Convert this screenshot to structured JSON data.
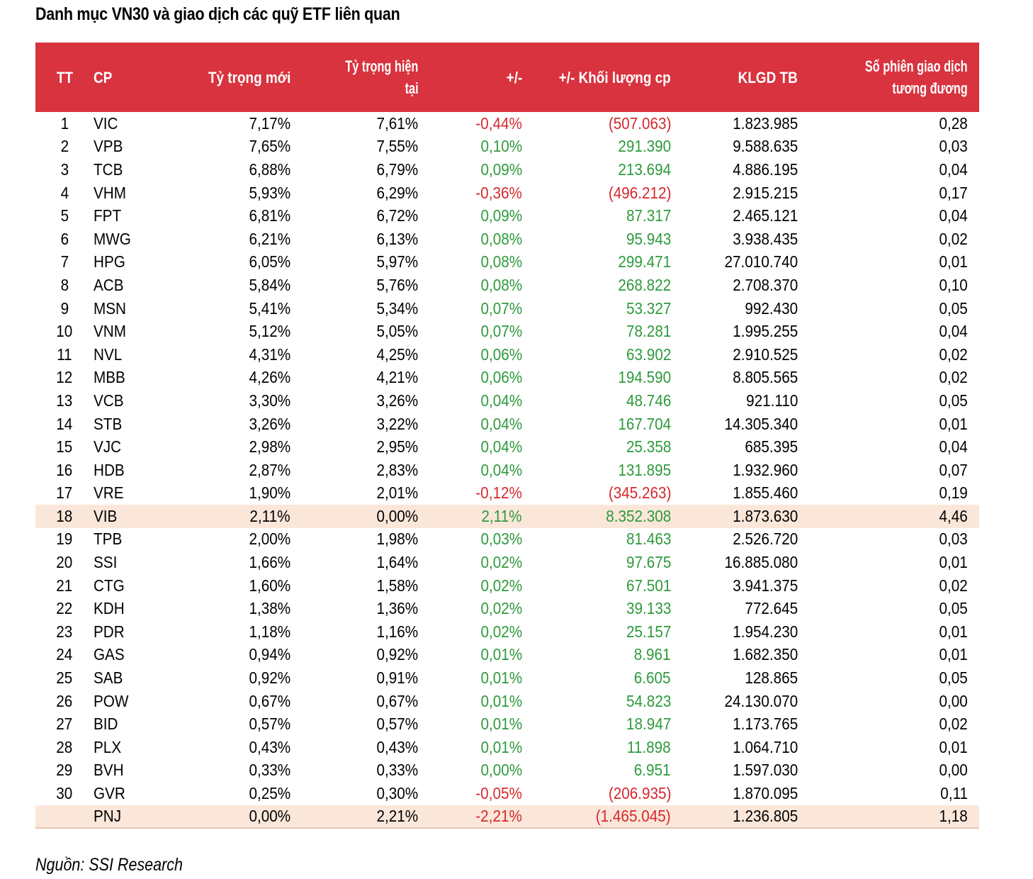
{
  "title": "Danh mục VN30 và giao dịch các quỹ ETF liên quan",
  "source": "Nguồn: SSI Research",
  "colors": {
    "header_bg": "#d8333f",
    "positive": "#2e9a3c",
    "negative": "#d6282e",
    "highlight_row": "#fbe7da"
  },
  "table": {
    "headers": {
      "tt": "TT",
      "cp": "CP",
      "new_weight": "Tỷ trọng mới",
      "cur_weight_1": "Tỷ trọng hiện",
      "cur_weight_2": "tại",
      "diff": "+/-",
      "vol_diff": "+/- Khối lượng cp",
      "avg_vol": "KLGD TB",
      "sessions_1": "Số phiên giao dịch",
      "sessions_2": "tương đương"
    },
    "rows": [
      {
        "tt": "1",
        "cp": "VIC",
        "new": "7,17%",
        "cur": "7,61%",
        "diff": "-0,44%",
        "vol": "(507.063)",
        "avg": "1.823.985",
        "sess": "0,28",
        "sign": "neg"
      },
      {
        "tt": "2",
        "cp": "VPB",
        "new": "7,65%",
        "cur": "7,55%",
        "diff": "0,10%",
        "vol": "291.390",
        "avg": "9.588.635",
        "sess": "0,03",
        "sign": "pos"
      },
      {
        "tt": "3",
        "cp": "TCB",
        "new": "6,88%",
        "cur": "6,79%",
        "diff": "0,09%",
        "vol": "213.694",
        "avg": "4.886.195",
        "sess": "0,04",
        "sign": "pos"
      },
      {
        "tt": "4",
        "cp": "VHM",
        "new": "5,93%",
        "cur": "6,29%",
        "diff": "-0,36%",
        "vol": "(496.212)",
        "avg": "2.915.215",
        "sess": "0,17",
        "sign": "neg"
      },
      {
        "tt": "5",
        "cp": "FPT",
        "new": "6,81%",
        "cur": "6,72%",
        "diff": "0,09%",
        "vol": "87.317",
        "avg": "2.465.121",
        "sess": "0,04",
        "sign": "pos"
      },
      {
        "tt": "6",
        "cp": "MWG",
        "new": "6,21%",
        "cur": "6,13%",
        "diff": "0,08%",
        "vol": "95.943",
        "avg": "3.938.435",
        "sess": "0,02",
        "sign": "pos"
      },
      {
        "tt": "7",
        "cp": "HPG",
        "new": "6,05%",
        "cur": "5,97%",
        "diff": "0,08%",
        "vol": "299.471",
        "avg": "27.010.740",
        "sess": "0,01",
        "sign": "pos"
      },
      {
        "tt": "8",
        "cp": "ACB",
        "new": "5,84%",
        "cur": "5,76%",
        "diff": "0,08%",
        "vol": "268.822",
        "avg": "2.708.370",
        "sess": "0,10",
        "sign": "pos"
      },
      {
        "tt": "9",
        "cp": "MSN",
        "new": "5,41%",
        "cur": "5,34%",
        "diff": "0,07%",
        "vol": "53.327",
        "avg": "992.430",
        "sess": "0,05",
        "sign": "pos"
      },
      {
        "tt": "10",
        "cp": "VNM",
        "new": "5,12%",
        "cur": "5,05%",
        "diff": "0,07%",
        "vol": "78.281",
        "avg": "1.995.255",
        "sess": "0,04",
        "sign": "pos"
      },
      {
        "tt": "11",
        "cp": "NVL",
        "new": "4,31%",
        "cur": "4,25%",
        "diff": "0,06%",
        "vol": "63.902",
        "avg": "2.910.525",
        "sess": "0,02",
        "sign": "pos"
      },
      {
        "tt": "12",
        "cp": "MBB",
        "new": "4,26%",
        "cur": "4,21%",
        "diff": "0,06%",
        "vol": "194.590",
        "avg": "8.805.565",
        "sess": "0,02",
        "sign": "pos"
      },
      {
        "tt": "13",
        "cp": "VCB",
        "new": "3,30%",
        "cur": "3,26%",
        "diff": "0,04%",
        "vol": "48.746",
        "avg": "921.110",
        "sess": "0,05",
        "sign": "pos"
      },
      {
        "tt": "14",
        "cp": "STB",
        "new": "3,26%",
        "cur": "3,22%",
        "diff": "0,04%",
        "vol": "167.704",
        "avg": "14.305.340",
        "sess": "0,01",
        "sign": "pos"
      },
      {
        "tt": "15",
        "cp": "VJC",
        "new": "2,98%",
        "cur": "2,95%",
        "diff": "0,04%",
        "vol": "25.358",
        "avg": "685.395",
        "sess": "0,04",
        "sign": "pos"
      },
      {
        "tt": "16",
        "cp": "HDB",
        "new": "2,87%",
        "cur": "2,83%",
        "diff": "0,04%",
        "vol": "131.895",
        "avg": "1.932.960",
        "sess": "0,07",
        "sign": "pos"
      },
      {
        "tt": "17",
        "cp": "VRE",
        "new": "1,90%",
        "cur": "2,01%",
        "diff": "-0,12%",
        "vol": "(345.263)",
        "avg": "1.855.460",
        "sess": "0,19",
        "sign": "neg"
      },
      {
        "tt": "18",
        "cp": "VIB",
        "new": "2,11%",
        "cur": "0,00%",
        "diff": "2,11%",
        "vol": "8.352.308",
        "avg": "1.873.630",
        "sess": "4,46",
        "sign": "pos",
        "highlight": true
      },
      {
        "tt": "19",
        "cp": "TPB",
        "new": "2,00%",
        "cur": "1,98%",
        "diff": "0,03%",
        "vol": "81.463",
        "avg": "2.526.720",
        "sess": "0,03",
        "sign": "pos"
      },
      {
        "tt": "20",
        "cp": "SSI",
        "new": "1,66%",
        "cur": "1,64%",
        "diff": "0,02%",
        "vol": "97.675",
        "avg": "16.885.080",
        "sess": "0,01",
        "sign": "pos"
      },
      {
        "tt": "21",
        "cp": "CTG",
        "new": "1,60%",
        "cur": "1,58%",
        "diff": "0,02%",
        "vol": "67.501",
        "avg": "3.941.375",
        "sess": "0,02",
        "sign": "pos"
      },
      {
        "tt": "22",
        "cp": "KDH",
        "new": "1,38%",
        "cur": "1,36%",
        "diff": "0,02%",
        "vol": "39.133",
        "avg": "772.645",
        "sess": "0,05",
        "sign": "pos"
      },
      {
        "tt": "23",
        "cp": "PDR",
        "new": "1,18%",
        "cur": "1,16%",
        "diff": "0,02%",
        "vol": "25.157",
        "avg": "1.954.230",
        "sess": "0,01",
        "sign": "pos"
      },
      {
        "tt": "24",
        "cp": "GAS",
        "new": "0,94%",
        "cur": "0,92%",
        "diff": "0,01%",
        "vol": "8.961",
        "avg": "1.682.350",
        "sess": "0,01",
        "sign": "pos"
      },
      {
        "tt": "25",
        "cp": "SAB",
        "new": "0,92%",
        "cur": "0,91%",
        "diff": "0,01%",
        "vol": "6.605",
        "avg": "128.865",
        "sess": "0,05",
        "sign": "pos"
      },
      {
        "tt": "26",
        "cp": "POW",
        "new": "0,67%",
        "cur": "0,67%",
        "diff": "0,01%",
        "vol": "54.823",
        "avg": "24.130.070",
        "sess": "0,00",
        "sign": "pos"
      },
      {
        "tt": "27",
        "cp": "BID",
        "new": "0,57%",
        "cur": "0,57%",
        "diff": "0,01%",
        "vol": "18.947",
        "avg": "1.173.765",
        "sess": "0,02",
        "sign": "pos"
      },
      {
        "tt": "28",
        "cp": "PLX",
        "new": "0,43%",
        "cur": "0,43%",
        "diff": "0,01%",
        "vol": "11.898",
        "avg": "1.064.710",
        "sess": "0,01",
        "sign": "pos"
      },
      {
        "tt": "29",
        "cp": "BVH",
        "new": "0,33%",
        "cur": "0,33%",
        "diff": "0,00%",
        "vol": "6.951",
        "avg": "1.597.030",
        "sess": "0,00",
        "sign": "pos"
      },
      {
        "tt": "30",
        "cp": "GVR",
        "new": "0,25%",
        "cur": "0,30%",
        "diff": "-0,05%",
        "vol": "(206.935)",
        "avg": "1.870.095",
        "sess": "0,11",
        "sign": "neg"
      },
      {
        "tt": "",
        "cp": "PNJ",
        "new": "0,00%",
        "cur": "2,21%",
        "diff": "-2,21%",
        "vol": "(1.465.045)",
        "avg": "1.236.805",
        "sess": "1,18",
        "sign": "neg",
        "highlight": true
      }
    ]
  }
}
